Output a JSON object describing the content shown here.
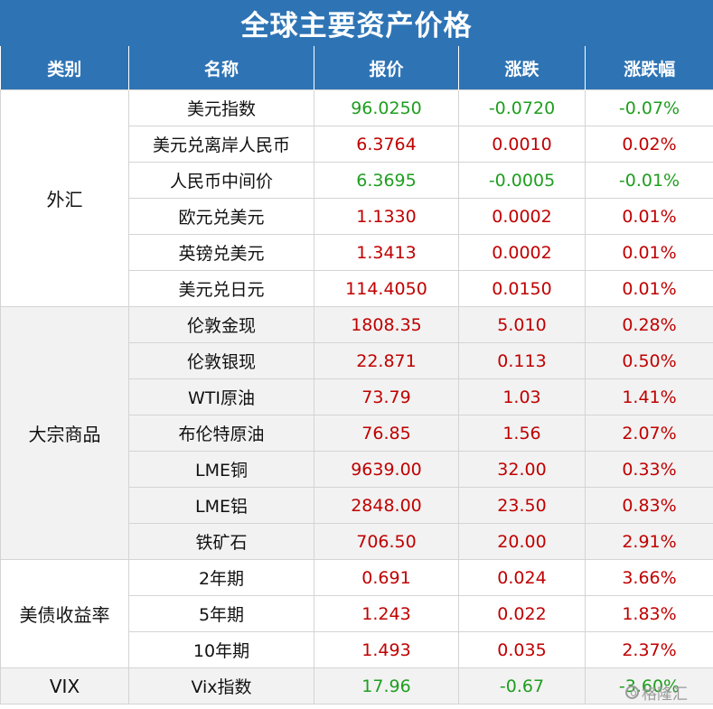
{
  "title": "全球主要资产价格",
  "headers": [
    "类别",
    "名称",
    "报价",
    "涨跌",
    "涨跌幅"
  ],
  "groups": [
    {
      "category": "外汇",
      "rows": [
        {
          "name": "美元指数",
          "price": "96.0250",
          "change": "-0.0720",
          "pct": "-0.07%",
          "dir": "down"
        },
        {
          "name": "美元兑离岸人民币",
          "price": "6.3764",
          "change": "0.0010",
          "pct": "0.02%",
          "dir": "up"
        },
        {
          "name": "人民币中间价",
          "price": "6.3695",
          "change": "-0.0005",
          "pct": "-0.01%",
          "dir": "down"
        },
        {
          "name": "欧元兑美元",
          "price": "1.1330",
          "change": "0.0002",
          "pct": "0.01%",
          "dir": "up"
        },
        {
          "name": "英镑兑美元",
          "price": "1.3413",
          "change": "0.0002",
          "pct": "0.01%",
          "dir": "up"
        },
        {
          "name": "美元兑日元",
          "price": "114.4050",
          "change": "0.0150",
          "pct": "0.01%",
          "dir": "up"
        }
      ]
    },
    {
      "category": "大宗商品",
      "rows": [
        {
          "name": "伦敦金现",
          "price": "1808.35",
          "change": "5.010",
          "pct": "0.28%",
          "dir": "up"
        },
        {
          "name": "伦敦银现",
          "price": "22.871",
          "change": "0.113",
          "pct": "0.50%",
          "dir": "up"
        },
        {
          "name": "WTI原油",
          "price": "73.79",
          "change": "1.03",
          "pct": "1.41%",
          "dir": "up"
        },
        {
          "name": "布伦特原油",
          "price": "76.85",
          "change": "1.56",
          "pct": "2.07%",
          "dir": "up"
        },
        {
          "name": "LME铜",
          "price": "9639.00",
          "change": "32.00",
          "pct": "0.33%",
          "dir": "up"
        },
        {
          "name": "LME铝",
          "price": "2848.00",
          "change": "23.50",
          "pct": "0.83%",
          "dir": "up"
        },
        {
          "name": "铁矿石",
          "price": "706.50",
          "change": "20.00",
          "pct": "2.91%",
          "dir": "up"
        }
      ]
    },
    {
      "category": "美债收益率",
      "rows": [
        {
          "name": "2年期",
          "price": "0.691",
          "change": "0.024",
          "pct": "3.66%",
          "dir": "up"
        },
        {
          "name": "5年期",
          "price": "1.243",
          "change": "0.022",
          "pct": "1.83%",
          "dir": "up"
        },
        {
          "name": "10年期",
          "price": "1.493",
          "change": "0.035",
          "pct": "2.37%",
          "dir": "up"
        }
      ]
    },
    {
      "category": "VIX",
      "rows": [
        {
          "name": "Vix指数",
          "price": "17.96",
          "change": "-0.67",
          "pct": "-3.60%",
          "dir": "down"
        }
      ]
    }
  ],
  "watermark": "格隆汇"
}
